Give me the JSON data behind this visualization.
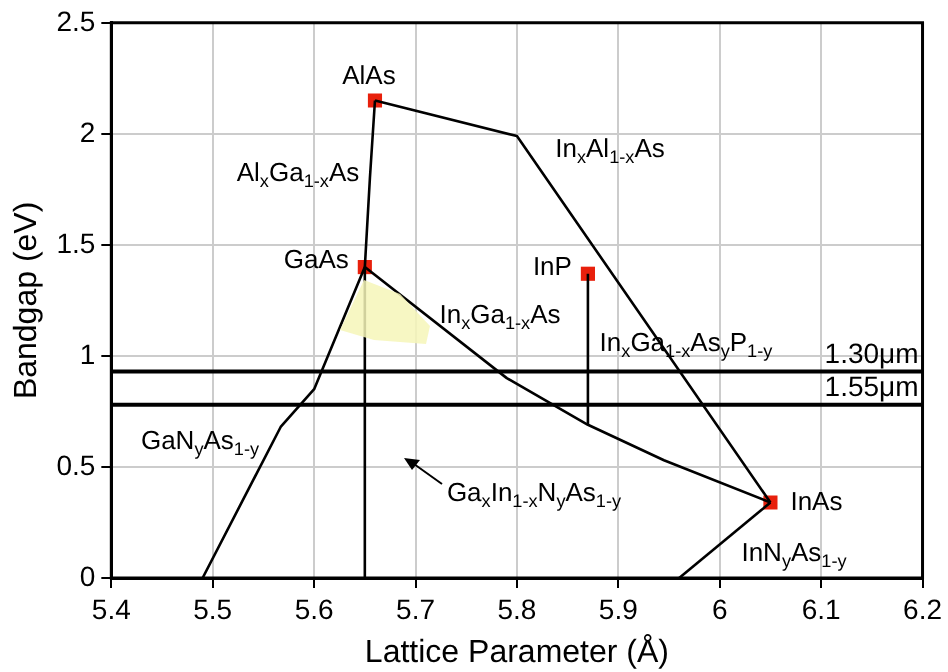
{
  "chart_data": {
    "type": "line",
    "xlabel": "Lattice Parameter (Å)",
    "ylabel": "Bandgap (eV)",
    "xlim": [
      5.4,
      6.2
    ],
    "xticks": [
      5.4,
      5.5,
      5.6,
      5.7,
      5.8,
      5.9,
      6,
      6.1,
      6.2
    ],
    "ylim": [
      0,
      2.5
    ],
    "yticks": [
      0,
      0.5,
      1,
      1.5,
      2,
      2.5
    ],
    "grid": true,
    "legend": false,
    "marker": "none",
    "line_style": "solid",
    "series": [
      {
        "color": "#000000",
        "x": [
          5.65,
          5.655,
          5.66
        ],
        "values": [
          1.4,
          1.8,
          2.15
        ]
      },
      {
        "color": "#000000",
        "x": [
          5.66,
          5.8,
          6.05
        ],
        "values": [
          2.15,
          1.99,
          0.34
        ]
      },
      {
        "color": "#000000",
        "x": [
          5.65,
          5.79,
          5.87,
          5.945,
          6.05
        ],
        "values": [
          1.4,
          0.9,
          0.69,
          0.53,
          0.34
        ]
      },
      {
        "color": "#000000",
        "x": [
          5.65,
          5.6,
          5.567,
          5.49
        ],
        "values": [
          1.4,
          0.85,
          0.68,
          0
        ]
      },
      {
        "color": "#000000",
        "x": [
          6.05,
          5.96
        ],
        "values": [
          0.34,
          0
        ]
      },
      {
        "color": "#000000",
        "x": [
          5.65,
          5.65
        ],
        "values": [
          0,
          1.4
        ]
      },
      {
        "color": "#000000",
        "x": [
          5.87,
          5.87
        ],
        "values": [
          0.69,
          1.37
        ]
      },
      {
        "type": "scatter",
        "marker": "square",
        "color": "#e8200c",
        "x": [
          5.66,
          5.65,
          5.87,
          6.05
        ],
        "values": [
          2.15,
          1.4,
          1.37,
          0.34
        ]
      }
    ],
    "ref_lines": [
      {
        "axis": "y",
        "value": 0.93,
        "label": "1.30μm",
        "color": "#000000"
      },
      {
        "axis": "y",
        "value": 0.78,
        "label": "1.55μm",
        "color": "#000000"
      }
    ],
    "annotations": [
      {
        "text": "AlAs",
        "x": 5.66,
        "y": 2.15
      },
      {
        "text": "GaAs",
        "x": 5.65,
        "y": 1.4
      },
      {
        "text": "InP",
        "x": 5.87,
        "y": 1.37
      },
      {
        "text": "InAs",
        "x": 6.05,
        "y": 0.34
      },
      "Al$_{x}$Ga$_{1-x}$As",
      "In$_{x}$Al$_{1-x}$As",
      "In$_{x}$Ga$_{1-x}$As",
      "In$_{x}$Ga$_{1-x}$As$_{y}$P$_{1-y}$",
      "GaN$_{y}$As$_{1-y}$",
      "Ga$_{x}$In$_{1-x}$N$_{y}$As$_{1-y}$",
      "InN$_{y}$As$_{1-y}$"
    ]
  }
}
